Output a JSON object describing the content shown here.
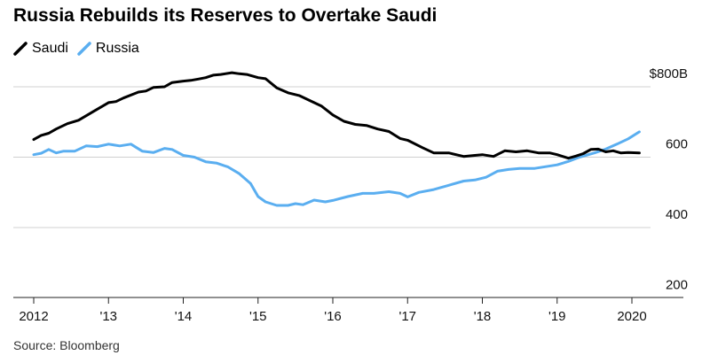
{
  "title": "Russia Rebuilds its Reserves to Overtake Saudi",
  "source": "Source: Bloomberg",
  "chart_data": {
    "type": "line",
    "title": "Russia Rebuilds its Reserves to Overtake Saudi",
    "xlabel": "",
    "ylabel": "",
    "xlim": [
      2012,
      2020.5
    ],
    "ylim": [
      250,
      850
    ],
    "grid": true,
    "legend_placement": "top-left",
    "x_ticks": [
      {
        "x": 2012,
        "label": "2012"
      },
      {
        "x": 2013,
        "label": "'13"
      },
      {
        "x": 2014,
        "label": "'14"
      },
      {
        "x": 2015,
        "label": "'15"
      },
      {
        "x": 2016,
        "label": "'16"
      },
      {
        "x": 2017,
        "label": "'17"
      },
      {
        "x": 2018,
        "label": "'18"
      },
      {
        "x": 2019,
        "label": "'19"
      },
      {
        "x": 2020,
        "label": "2020"
      }
    ],
    "y_ticks": [
      {
        "y": 800,
        "label": "$800B"
      },
      {
        "y": 600,
        "label": "600"
      },
      {
        "y": 400,
        "label": "400"
      },
      {
        "y": 200,
        "label": "200"
      }
    ],
    "series": [
      {
        "name": "Saudi",
        "color": "#000000",
        "points": [
          [
            2012.0,
            650
          ],
          [
            2012.1,
            662
          ],
          [
            2012.2,
            668
          ],
          [
            2012.3,
            680
          ],
          [
            2012.45,
            695
          ],
          [
            2012.6,
            705
          ],
          [
            2012.8,
            730
          ],
          [
            2013.0,
            755
          ],
          [
            2013.1,
            758
          ],
          [
            2013.2,
            768
          ],
          [
            2013.4,
            785
          ],
          [
            2013.5,
            788
          ],
          [
            2013.6,
            798
          ],
          [
            2013.75,
            800
          ],
          [
            2013.85,
            812
          ],
          [
            2014.0,
            816
          ],
          [
            2014.1,
            818
          ],
          [
            2014.2,
            822
          ],
          [
            2014.3,
            826
          ],
          [
            2014.4,
            833
          ],
          [
            2014.5,
            835
          ],
          [
            2014.65,
            840
          ],
          [
            2014.75,
            837
          ],
          [
            2014.85,
            835
          ],
          [
            2015.0,
            826
          ],
          [
            2015.1,
            823
          ],
          [
            2015.25,
            797
          ],
          [
            2015.4,
            783
          ],
          [
            2015.55,
            775
          ],
          [
            2015.7,
            760
          ],
          [
            2015.85,
            745
          ],
          [
            2016.0,
            720
          ],
          [
            2016.15,
            702
          ],
          [
            2016.3,
            693
          ],
          [
            2016.45,
            690
          ],
          [
            2016.6,
            680
          ],
          [
            2016.75,
            673
          ],
          [
            2016.9,
            653
          ],
          [
            2017.0,
            648
          ],
          [
            2017.2,
            627
          ],
          [
            2017.35,
            612
          ],
          [
            2017.55,
            612
          ],
          [
            2017.75,
            602
          ],
          [
            2017.9,
            605
          ],
          [
            2018.0,
            607
          ],
          [
            2018.15,
            602
          ],
          [
            2018.3,
            618
          ],
          [
            2018.45,
            615
          ],
          [
            2018.6,
            618
          ],
          [
            2018.75,
            612
          ],
          [
            2018.9,
            612
          ],
          [
            2019.0,
            607
          ],
          [
            2019.15,
            597
          ],
          [
            2019.25,
            603
          ],
          [
            2019.35,
            610
          ],
          [
            2019.45,
            622
          ],
          [
            2019.55,
            623
          ],
          [
            2019.65,
            615
          ],
          [
            2019.75,
            618
          ],
          [
            2019.85,
            612
          ],
          [
            2019.95,
            613
          ],
          [
            2020.1,
            612
          ]
        ]
      },
      {
        "name": "Russia",
        "color": "#5aaef0",
        "points": [
          [
            2012.0,
            607
          ],
          [
            2012.1,
            611
          ],
          [
            2012.2,
            622
          ],
          [
            2012.3,
            612
          ],
          [
            2012.4,
            617
          ],
          [
            2012.55,
            617
          ],
          [
            2012.7,
            632
          ],
          [
            2012.85,
            630
          ],
          [
            2013.0,
            637
          ],
          [
            2013.15,
            632
          ],
          [
            2013.3,
            637
          ],
          [
            2013.45,
            617
          ],
          [
            2013.6,
            613
          ],
          [
            2013.75,
            625
          ],
          [
            2013.85,
            622
          ],
          [
            2014.0,
            605
          ],
          [
            2014.15,
            600
          ],
          [
            2014.3,
            587
          ],
          [
            2014.45,
            583
          ],
          [
            2014.6,
            572
          ],
          [
            2014.75,
            553
          ],
          [
            2014.9,
            525
          ],
          [
            2015.0,
            488
          ],
          [
            2015.1,
            473
          ],
          [
            2015.25,
            463
          ],
          [
            2015.4,
            463
          ],
          [
            2015.5,
            468
          ],
          [
            2015.6,
            465
          ],
          [
            2015.75,
            478
          ],
          [
            2015.9,
            473
          ],
          [
            2016.0,
            477
          ],
          [
            2016.2,
            488
          ],
          [
            2016.4,
            497
          ],
          [
            2016.55,
            497
          ],
          [
            2016.75,
            502
          ],
          [
            2016.9,
            497
          ],
          [
            2017.0,
            487
          ],
          [
            2017.15,
            500
          ],
          [
            2017.35,
            508
          ],
          [
            2017.55,
            520
          ],
          [
            2017.75,
            532
          ],
          [
            2017.9,
            535
          ],
          [
            2018.05,
            543
          ],
          [
            2018.2,
            560
          ],
          [
            2018.35,
            565
          ],
          [
            2018.5,
            568
          ],
          [
            2018.7,
            568
          ],
          [
            2018.85,
            573
          ],
          [
            2019.0,
            578
          ],
          [
            2019.15,
            588
          ],
          [
            2019.3,
            600
          ],
          [
            2019.5,
            612
          ],
          [
            2019.65,
            623
          ],
          [
            2019.8,
            637
          ],
          [
            2019.95,
            652
          ],
          [
            2020.1,
            672
          ]
        ]
      }
    ]
  }
}
